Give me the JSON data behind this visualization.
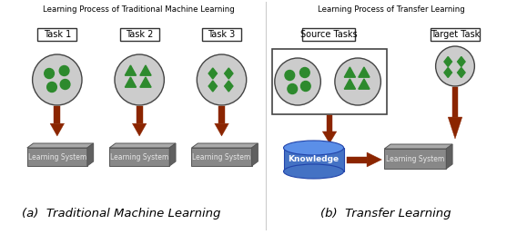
{
  "title_left": "Learning Process of Traditional Machine Learning",
  "title_right": "Learning Process of Transfer Learning",
  "label_left": "(a)  Traditional Machine Learning",
  "label_right": "(b)  Transfer Learning",
  "bg_color": "#ffffff",
  "circle_fill": "#cccccc",
  "circle_edge": "#444444",
  "green_fill": "#2d8a2d",
  "arrow_color": "#8b2500",
  "box_face": "#888888",
  "box_top": "#aaaaaa",
  "box_right": "#606060",
  "box_edge": "#555555",
  "box_text_color": "#e8e8e8",
  "task_box_edge": "#333333",
  "knowledge_fill": "#4472c4",
  "knowledge_light": "#5b8fe8",
  "knowledge_edge": "#2244aa",
  "src_box_edge": "#444444",
  "divider_color": "#cccccc"
}
